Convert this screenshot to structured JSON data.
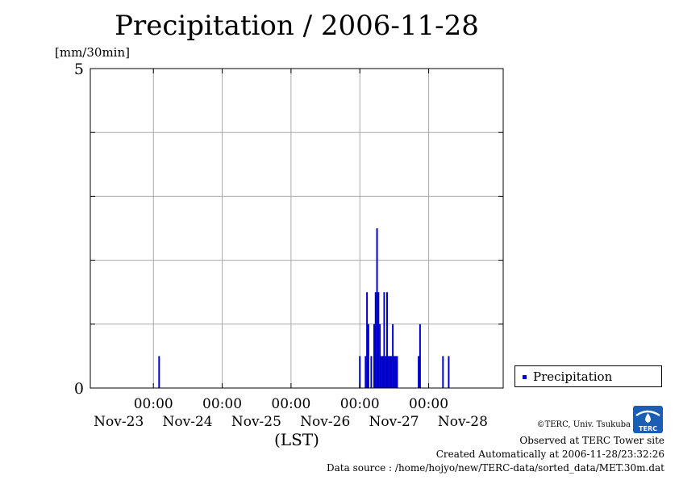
{
  "title": "Precipitation / 2006-11-28",
  "y_unit_label": "[mm/30min]",
  "x_axis_label": "(LST)",
  "legend": {
    "label": "Precipitation",
    "color": "#0000cc"
  },
  "credits": {
    "copyright": "©TERC, Univ. Tsukuba",
    "observed": "Observed at TERC Tower site",
    "created": "Created Automatically at 2006-11-28/23:32:26",
    "source": "Data source : /home/hojyo/new/TERC-data/sorted_data/MET.30m.dat"
  },
  "logo": {
    "name": "terc-logo",
    "text": "TERC",
    "color": "#1a5fb4"
  },
  "chart_data": {
    "type": "bar",
    "title": "Precipitation / 2006-11-28",
    "ylabel": "[mm/30min]",
    "xlabel": "(LST)",
    "ylim": [
      0,
      5
    ],
    "yticks": [
      0,
      1,
      2,
      3,
      4,
      5
    ],
    "ytick_labels": [
      {
        "value": 0,
        "label": "0"
      },
      {
        "value": 5,
        "label": "5"
      }
    ],
    "xlim": [
      "2006-11-22T02:00",
      "2006-11-28T02:00"
    ],
    "xticks": [
      {
        "t": "2006-11-23T00:00",
        "time": "00:00",
        "date": "Nov-23"
      },
      {
        "t": "2006-11-24T00:00",
        "time": "00:00",
        "date": "Nov-24"
      },
      {
        "t": "2006-11-25T00:00",
        "time": "00:00",
        "date": "Nov-25"
      },
      {
        "t": "2006-11-26T00:00",
        "time": "00:00",
        "date": "Nov-26"
      },
      {
        "t": "2006-11-27T00:00",
        "time": "00:00",
        "date": "Nov-27"
      }
    ],
    "extra_date_labels": [
      "Nov-28"
    ],
    "grid": true,
    "legend_position": "right-bottom",
    "series": [
      {
        "name": "Precipitation",
        "color": "#0000cc",
        "points": [
          {
            "t": "2006-11-23T02:00",
            "v": 0.5
          },
          {
            "t": "2006-11-26T00:00",
            "v": 0.5
          },
          {
            "t": "2006-11-26T02:00",
            "v": 0.5
          },
          {
            "t": "2006-11-26T02:30",
            "v": 1.5
          },
          {
            "t": "2006-11-26T03:00",
            "v": 1.0
          },
          {
            "t": "2006-11-26T04:00",
            "v": 0.5
          },
          {
            "t": "2006-11-26T05:00",
            "v": 1.0
          },
          {
            "t": "2006-11-26T05:30",
            "v": 1.5
          },
          {
            "t": "2006-11-26T06:00",
            "v": 2.5
          },
          {
            "t": "2006-11-26T06:30",
            "v": 1.5
          },
          {
            "t": "2006-11-26T07:00",
            "v": 1.0
          },
          {
            "t": "2006-11-26T07:30",
            "v": 0.5
          },
          {
            "t": "2006-11-26T08:00",
            "v": 0.5
          },
          {
            "t": "2006-11-26T08:30",
            "v": 1.5
          },
          {
            "t": "2006-11-26T09:00",
            "v": 0.5
          },
          {
            "t": "2006-11-26T09:30",
            "v": 1.5
          },
          {
            "t": "2006-11-26T10:00",
            "v": 0.5
          },
          {
            "t": "2006-11-26T10:30",
            "v": 0.5
          },
          {
            "t": "2006-11-26T11:00",
            "v": 0.5
          },
          {
            "t": "2006-11-26T11:30",
            "v": 1.0
          },
          {
            "t": "2006-11-26T12:00",
            "v": 0.5
          },
          {
            "t": "2006-11-26T12:30",
            "v": 0.5
          },
          {
            "t": "2006-11-26T13:00",
            "v": 0.5
          },
          {
            "t": "2006-11-26T20:30",
            "v": 0.5
          },
          {
            "t": "2006-11-26T21:00",
            "v": 1.0
          },
          {
            "t": "2006-11-27T05:00",
            "v": 0.5
          },
          {
            "t": "2006-11-27T07:00",
            "v": 0.5
          }
        ]
      }
    ]
  }
}
